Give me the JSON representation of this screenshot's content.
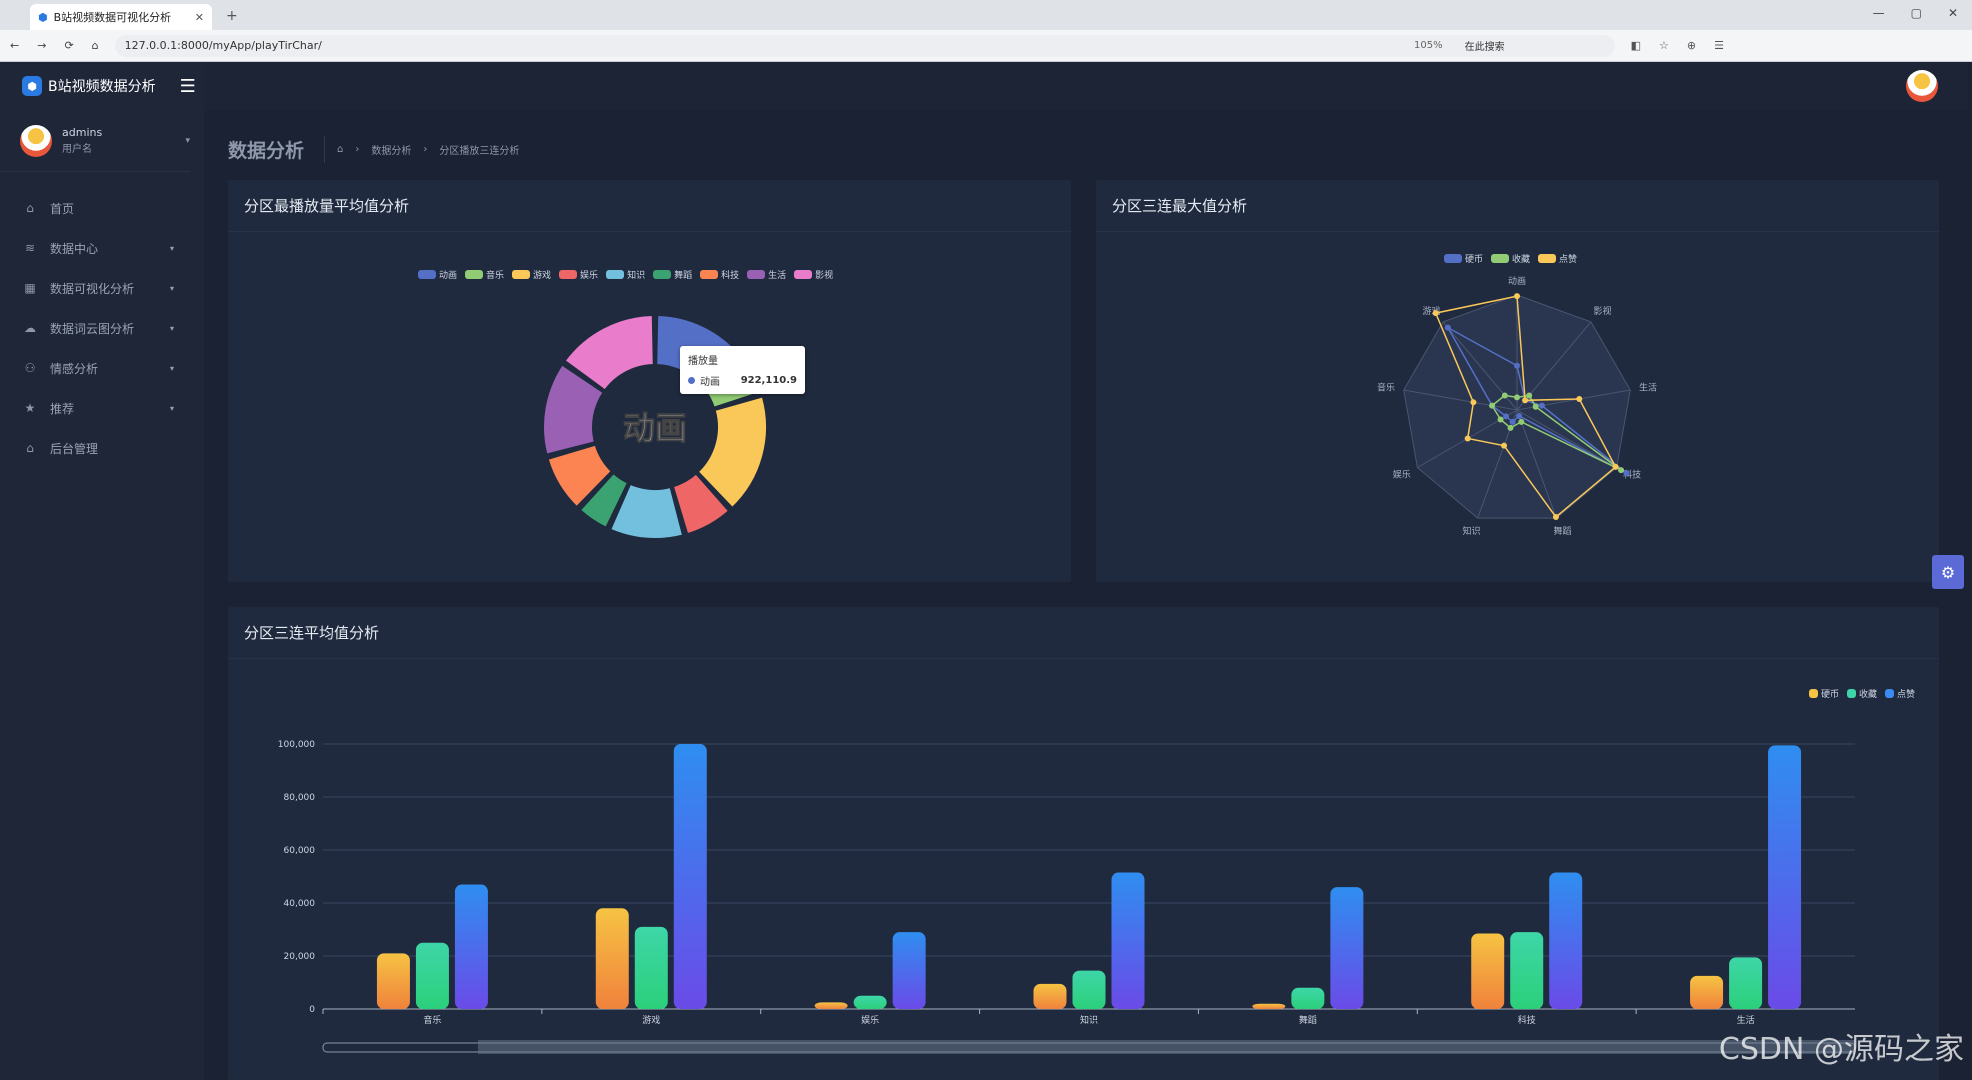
{
  "browser": {
    "tab_title": "B站视频数据可视化分析",
    "url": "127.0.0.1:8000/myApp/playTirChar/",
    "zoom": "105%",
    "search_label": "在此搜索"
  },
  "sidebar": {
    "brand": "B站视频数据分析",
    "user_name": "admins",
    "user_role": "用户名",
    "items": [
      {
        "label": "首页",
        "icon": "home-icon"
      },
      {
        "label": "数据中心",
        "icon": "layers-icon"
      },
      {
        "label": "数据可视化分析",
        "icon": "grid-icon"
      },
      {
        "label": "数据词云图分析",
        "icon": "cloud-icon"
      },
      {
        "label": "情感分析",
        "icon": "users-icon"
      },
      {
        "label": "推荐",
        "icon": "star-icon"
      },
      {
        "label": "后台管理",
        "icon": "home-icon"
      }
    ]
  },
  "page": {
    "title": "数据分析",
    "breadcrumb": [
      "数据分析",
      "分区播放三连分析"
    ]
  },
  "panels": {
    "donut_title": "分区最播放量平均值分析",
    "radar_title": "分区三连最大值分析",
    "bar_title": "分区三连平均值分析"
  },
  "tooltip": {
    "title": "播放量",
    "name": "动画",
    "value": "922,110.9"
  },
  "donut_center": "动画",
  "watermark": "CSDN @源码之家",
  "colors": {
    "donut": [
      "#5470c6",
      "#91cc75",
      "#fac858",
      "#ee6666",
      "#73c0de",
      "#3ba272",
      "#fc8452",
      "#9a60b4",
      "#ea7ccc"
    ]
  },
  "chart_data": [
    {
      "type": "pie",
      "title": "分区最播放量平均值分析",
      "categories": [
        "动画",
        "音乐",
        "游戏",
        "娱乐",
        "知识",
        "舞蹈",
        "科技",
        "生活",
        "影视"
      ],
      "values": [
        922110.9,
        380000,
        1150000,
        480000,
        720000,
        330000,
        560000,
        900000,
        980000
      ],
      "legend": "top"
    },
    {
      "type": "radar",
      "title": "分区三连最大值分析",
      "indicators": [
        "动画",
        "影视",
        "生活",
        "科技",
        "舞蹈",
        "知识",
        "娱乐",
        "音乐",
        "游戏"
      ],
      "series": [
        {
          "name": "硬币",
          "values": [
            0.35,
            0.1,
            0.2,
            1.0,
            0.05,
            0.1,
            0.1,
            0.2,
            0.85
          ]
        },
        {
          "name": "收藏",
          "values": [
            0.1,
            0.15,
            0.15,
            0.95,
            0.1,
            0.15,
            0.15,
            0.2,
            0.15
          ]
        },
        {
          "name": "点赞",
          "values": [
            0.9,
            0.1,
            0.5,
            0.9,
            0.9,
            0.3,
            0.45,
            0.35,
            1.0
          ]
        }
      ],
      "legend": "top"
    },
    {
      "type": "bar",
      "title": "分区三连平均值分析",
      "categories": [
        "音乐",
        "游戏",
        "娱乐",
        "知识",
        "舞蹈",
        "科技",
        "生活"
      ],
      "series": [
        {
          "name": "硬币",
          "values": [
            21000,
            38000,
            2500,
            9500,
            2000,
            28500,
            12500
          ],
          "color": "#f6c343"
        },
        {
          "name": "收藏",
          "values": [
            25000,
            31000,
            5000,
            14500,
            8000,
            29000,
            19500
          ],
          "color": "#3ed6a8"
        },
        {
          "name": "点赞",
          "values": [
            47000,
            100000,
            29000,
            51500,
            46000,
            51500,
            99500
          ],
          "color": "#3b8cf0"
        }
      ],
      "y_ticks": [
        "0",
        "20,000",
        "40,000",
        "60,000",
        "80,000",
        "100,000"
      ],
      "ylim": [
        0,
        100000
      ],
      "legend": "top-right",
      "grid": true
    }
  ]
}
